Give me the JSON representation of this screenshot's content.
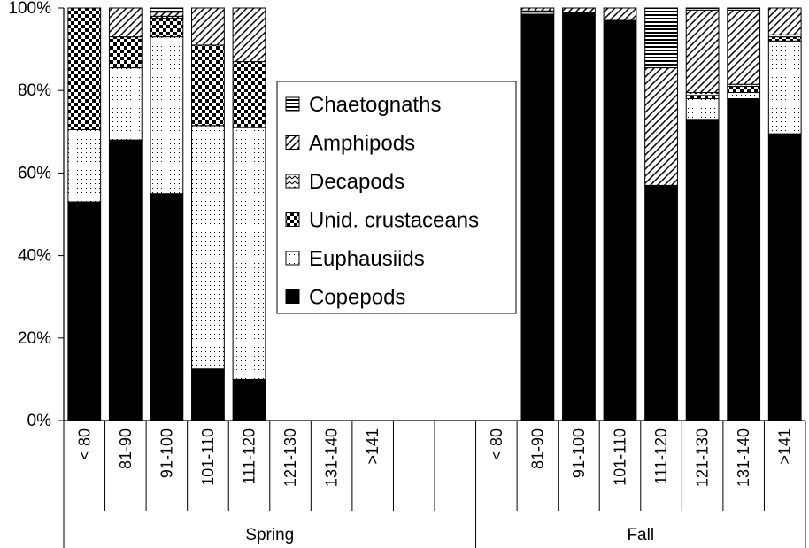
{
  "chart_data": {
    "type": "bar",
    "stacked": true,
    "percent": true,
    "ylim": [
      0,
      100
    ],
    "yticks": [
      "0%",
      "20%",
      "40%",
      "60%",
      "80%",
      "100%"
    ],
    "groups": [
      {
        "name": "Spring",
        "categories": [
          "< 80",
          "81-90",
          "91-100",
          "101-110",
          "111-120",
          "121-130",
          "131-140",
          ">141",
          "",
          ""
        ]
      },
      {
        "name": "Fall",
        "categories": [
          "< 80",
          "81-90",
          "91-100",
          "101-110",
          "111-120",
          "121-130",
          "131-140",
          ">141"
        ]
      }
    ],
    "legend_order": [
      "Chaetognaths",
      "Amphipods",
      "Decapods",
      "Unid. crustaceans",
      "Euphausiids",
      "Copepods"
    ],
    "series": [
      {
        "name": "Copepods",
        "pattern": "solid",
        "values": [
          53,
          68,
          55,
          12.5,
          10,
          0,
          0,
          0,
          0,
          0,
          0,
          98.5,
          99,
          97,
          57,
          73,
          78,
          69.5
        ]
      },
      {
        "name": "Euphausiids",
        "pattern": "dots",
        "values": [
          17.5,
          17.5,
          38,
          59,
          61,
          0,
          0,
          0,
          0,
          0,
          0,
          0.5,
          0,
          0,
          0,
          5,
          1.5,
          22.5
        ]
      },
      {
        "name": "Unid. crustaceans",
        "pattern": "checker",
        "values": [
          29.5,
          7.5,
          4.5,
          19.5,
          16,
          0,
          0,
          0,
          0,
          0,
          0,
          0.3,
          0,
          0,
          0,
          0.8,
          1.5,
          1
        ]
      },
      {
        "name": "Decapods",
        "pattern": "zigzag",
        "values": [
          0,
          0,
          0.5,
          0,
          0,
          0,
          0,
          0,
          0,
          0,
          0,
          0,
          0,
          0,
          0,
          0.7,
          0.5,
          0.5
        ]
      },
      {
        "name": "Amphipods",
        "pattern": "diagonal",
        "values": [
          0,
          7,
          1,
          9,
          13,
          0,
          0,
          0,
          0,
          0,
          0,
          0.7,
          1,
          3,
          28.5,
          20,
          18,
          6.5
        ]
      },
      {
        "name": "Chaetognaths",
        "pattern": "horizontal",
        "values": [
          0,
          0,
          1,
          0,
          0,
          0,
          0,
          0,
          0,
          0,
          0,
          0,
          0,
          0,
          14.5,
          0.5,
          0.5,
          0
        ]
      }
    ]
  }
}
